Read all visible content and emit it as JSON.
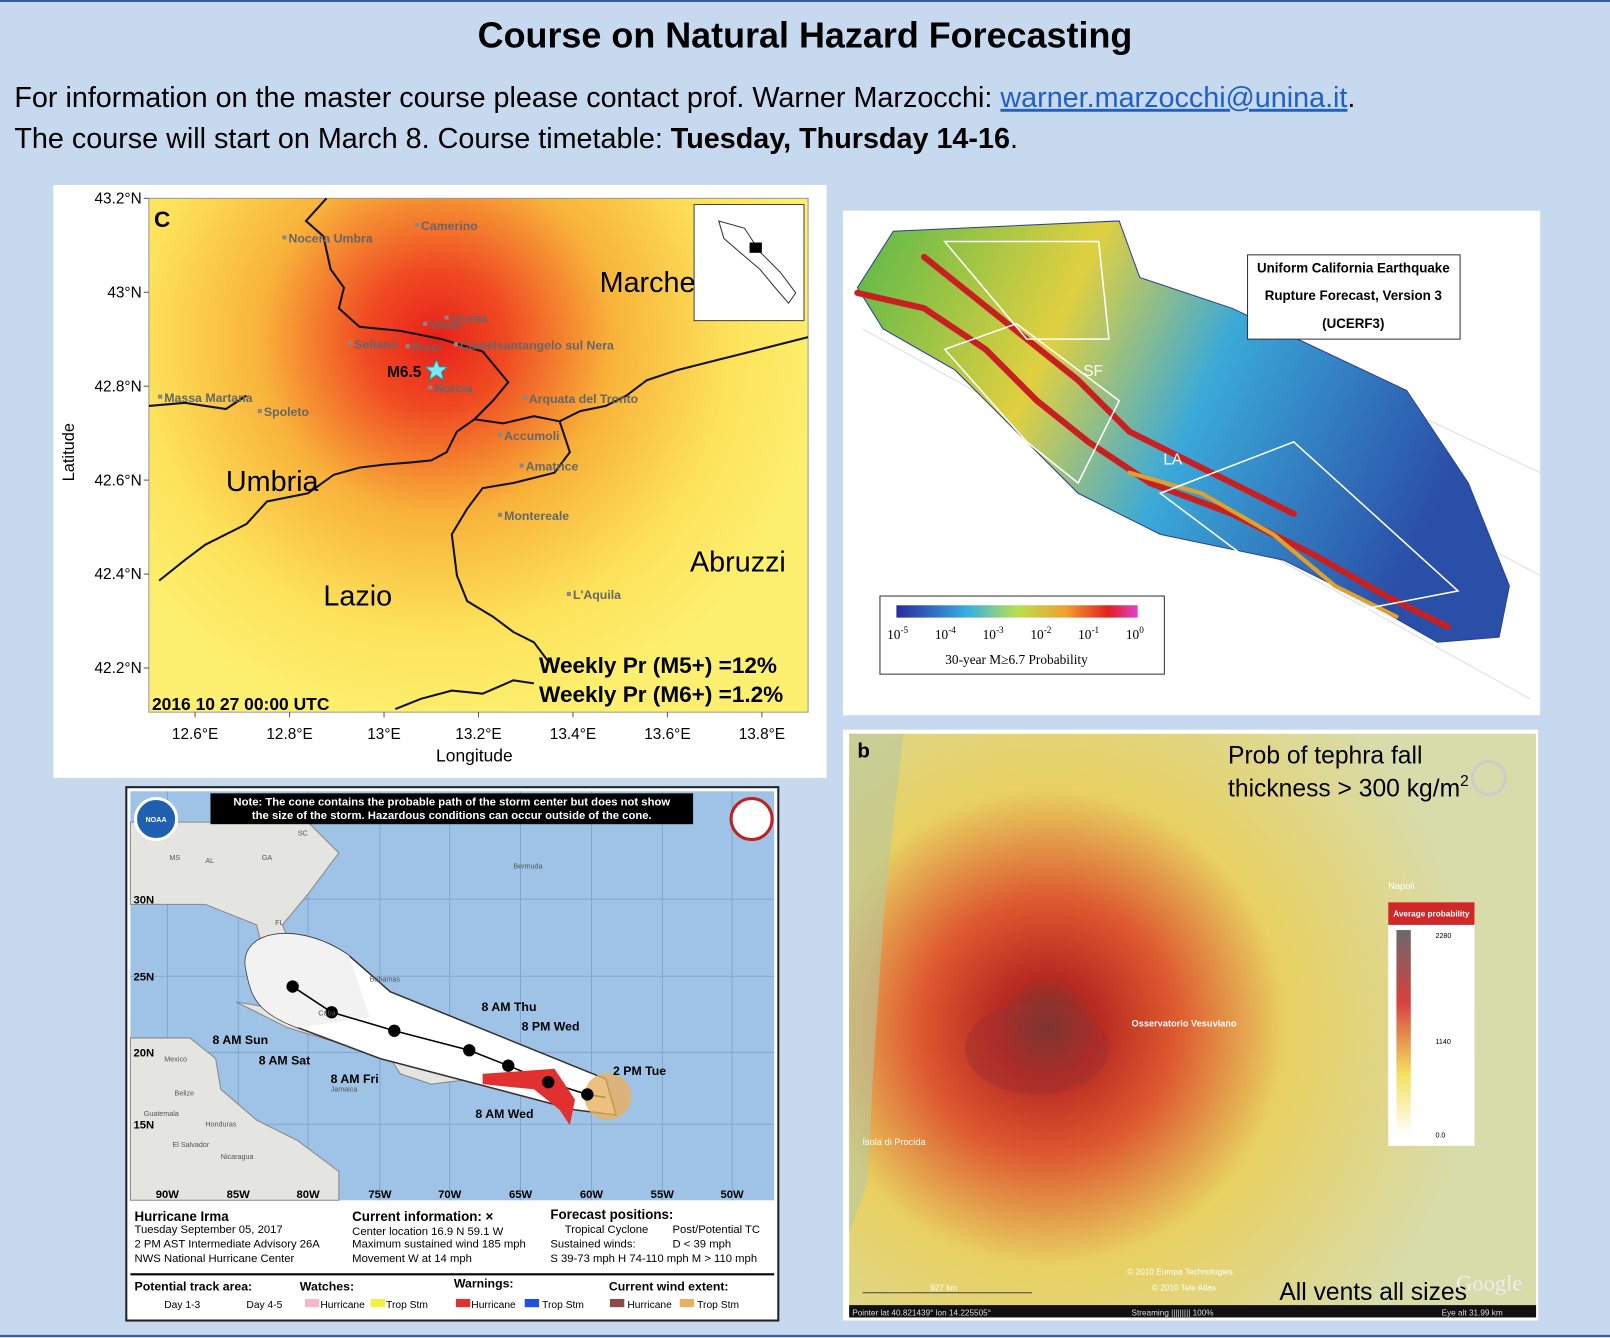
{
  "header": {
    "title": "Course on Natural Hazard Forecasting",
    "info_line": {
      "text": "For information on the master course please contact prof. Warner Marzocchi: ",
      "email": "warner.marzocchi@unina.it",
      "end": "."
    },
    "timetable_line": {
      "text": "The course will start on March 8. Course timetable: ",
      "bold": "Tuesday, Thursday 14-16",
      "end": "."
    }
  },
  "italy_map": {
    "panel_label": "C",
    "y_axis_label": "Latitude",
    "x_axis_label": "Longitude",
    "y_ticks": [
      "43.2°N",
      "43°N",
      "42.8°N",
      "42.6°N",
      "42.4°N",
      "42.2°N"
    ],
    "x_ticks": [
      "12.6°E",
      "12.8°E",
      "13°E",
      "13.2°E",
      "13.4°E",
      "13.6°E",
      "13.8°E"
    ],
    "regions": [
      "Marche",
      "Umbria",
      "Lazio",
      "Abruzzi"
    ],
    "towns": [
      "Camerino",
      "Nocera Umbra",
      "Ussita",
      "Visso",
      "Sellano",
      "Preci",
      "Castelsantangelo sul Nera",
      "Norcia",
      "Massa Martana",
      "Spoleto",
      "Arquata del Tronto",
      "Accumoli",
      "Amatrice",
      "Montereale",
      "L'Aquila"
    ],
    "event": "M6.5",
    "probabilities": [
      "Weekly Pr (M5+) =12%",
      "Weekly Pr (M6+) =1.2%"
    ],
    "timestamp": "2016 10 27 00:00 UTC"
  },
  "california_map": {
    "title_lines": [
      "Uniform California Earthquake",
      "Rupture Forecast, Version 3",
      "(UCERF3)"
    ],
    "city_labels": [
      "SF",
      "LA"
    ],
    "colorbar_ticks": [
      {
        "base": "10",
        "exponent": "-5"
      },
      {
        "base": "10",
        "exponent": "-4"
      },
      {
        "base": "10",
        "exponent": "-3"
      },
      {
        "base": "10",
        "exponent": "-2"
      },
      {
        "base": "10",
        "exponent": "-1"
      },
      {
        "base": "10",
        "exponent": "0"
      }
    ],
    "colorbar_label": "30-year M≥6.7 Probability"
  },
  "hurricane_map": {
    "note": [
      "Note: The cone contains the probable path of the storm center but does not show",
      "the size of the storm. Hazardous conditions can occur outside of the cone."
    ],
    "logo": "NOAA",
    "lat_labels": [
      "30N",
      "25N",
      "20N",
      "15N"
    ],
    "lon_labels": [
      "90W",
      "85W",
      "80W",
      "75W",
      "70W",
      "65W",
      "60W",
      "55W",
      "50W"
    ],
    "forecast_labels": [
      "8 AM Thu",
      "8 PM Wed",
      "2 PM Tue",
      "8 AM Wed",
      "8 AM Fri",
      "8 AM Sat",
      "8 AM Sun"
    ],
    "places": [
      "MS",
      "AL",
      "GA",
      "SC",
      "FL",
      "Bermuda",
      "Bahamas",
      "Cuba",
      "Mexico",
      "Jamaica",
      "Belize",
      "Guatemala",
      "Honduras",
      "El Salvador",
      "Nicaragua"
    ],
    "storm_info": [
      "Hurricane Irma",
      "Tuesday September 05, 2017",
      "2 PM AST Intermediate Advisory 26A",
      "NWS National Hurricane Center"
    ],
    "current_info": [
      "Current information: ×",
      "Center location 16.9 N 59.1 W",
      "Maximum sustained wind 185 mph",
      "Movement W at 14 mph"
    ],
    "forecast_info": [
      "Forecast positions:",
      "Tropical Cyclone",
      "Post/Potential TC",
      "Sustained winds:",
      "D < 39 mph",
      "S 39-73 mph  H 74-110 mph  M > 110 mph"
    ],
    "legend": [
      "Potential track area:",
      "Day 1-3",
      "Day 4-5",
      "Watches:",
      "Hurricane",
      "Trop Stm",
      "Warnings:",
      "Hurricane",
      "Trop Stm",
      "Current wind extent:",
      "Hurricane",
      "Trop Stm"
    ]
  },
  "tephra_map": {
    "panel_label": "b",
    "caption_line1": "Prob of tephra fall",
    "caption_line2": {
      "text": "thickness > 300 kg/m",
      "superscript": "2"
    },
    "footer_caption": "All vents all sizes",
    "places": [
      "Napoli",
      "Osservatorio Vesuviano",
      "Isola di Procida"
    ],
    "colorbar_title": "Average probability",
    "colorbar_ticks": [
      "2280",
      "1140",
      "0.0"
    ],
    "credits": [
      "© 2010 Europa Technologies",
      "© 2010 Tele Atlas",
      "Google"
    ],
    "scale": "927 km",
    "status_bar": [
      "Pointer  lat  40.821439°  lon  14.225505°",
      "Streaming ||||||||| 100%",
      "Eye alt  31.99 km"
    ]
  }
}
